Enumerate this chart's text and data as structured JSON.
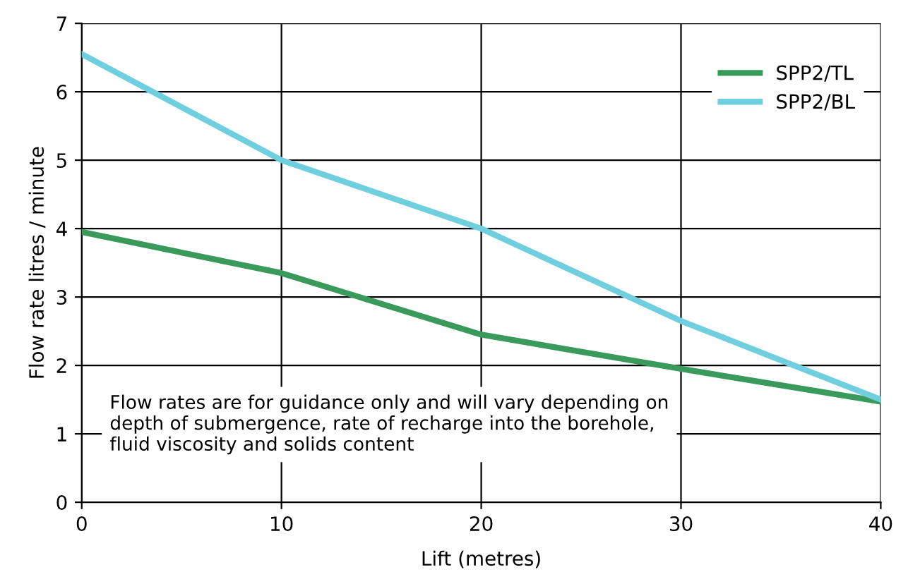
{
  "chart_data": {
    "type": "line",
    "xlabel": "Lift (metres)",
    "ylabel": "Flow rate litres / minute",
    "x": [
      0,
      10,
      20,
      30,
      40
    ],
    "series": [
      {
        "name": "SPP2/TL",
        "color": "#3a9a5c",
        "values": [
          3.95,
          3.35,
          2.45,
          1.95,
          1.47
        ]
      },
      {
        "name": "SPP2/BL",
        "color": "#70cfdf",
        "values": [
          6.55,
          5.0,
          4.0,
          2.65,
          1.5
        ]
      }
    ],
    "xlim": [
      0,
      40
    ],
    "xticks": [
      0,
      10,
      20,
      30,
      40
    ],
    "ylim": [
      0,
      7
    ],
    "yticks": [
      0,
      1,
      2,
      3,
      4,
      5,
      6,
      7
    ],
    "grid": true,
    "legend": "top right",
    "marker": "none",
    "line_style": "solid",
    "annotations": [
      "Flow rates are for guidance only and will vary depending on depth of submergence, rate of recharge into the borehole, fluid viscosity and solids content"
    ]
  }
}
